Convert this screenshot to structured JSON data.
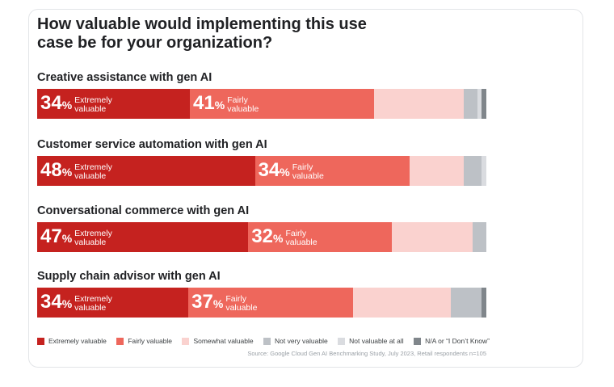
{
  "chart_data": {
    "type": "bar",
    "orientation": "horizontal-stacked",
    "title": "How valuable would implementing this use case be for your organization?",
    "categories": [
      "Creative assistance with gen AI",
      "Customer service automation with gen AI",
      "Conversational commerce with gen AI",
      "Supply chain advisor with gen AI"
    ],
    "series": [
      {
        "name": "Extremely valuable",
        "short": "Extremely\nvaluable",
        "color": "#c5221f",
        "values": [
          34,
          48,
          47,
          34
        ],
        "labeled": true
      },
      {
        "name": "Fairly valuable",
        "short": "Fairly\nvaluable",
        "color": "#ee675c",
        "values": [
          41,
          34,
          32,
          37
        ],
        "labeled": true
      },
      {
        "name": "Somewhat valuable",
        "color": "#fad2cf",
        "values": [
          20,
          12,
          18,
          22
        ],
        "labeled": false
      },
      {
        "name": "Not very valuable",
        "color": "#bdc1c6",
        "values": [
          3,
          4,
          3,
          7
        ],
        "labeled": false
      },
      {
        "name": "Not valuable at all",
        "color": "#dadce0",
        "values": [
          1,
          1,
          0,
          0
        ],
        "labeled": false
      },
      {
        "name": "N/A or “I Don’t Know”",
        "color": "#80868b",
        "values": [
          1,
          0,
          0,
          1
        ],
        "labeled": false
      }
    ],
    "percent_sign": "%",
    "xlim": [
      0,
      100
    ],
    "legend_position": "bottom",
    "source": "Source: Google Cloud Gen AI Benchmarking Study, July 2023, Retail respondents n=105"
  }
}
